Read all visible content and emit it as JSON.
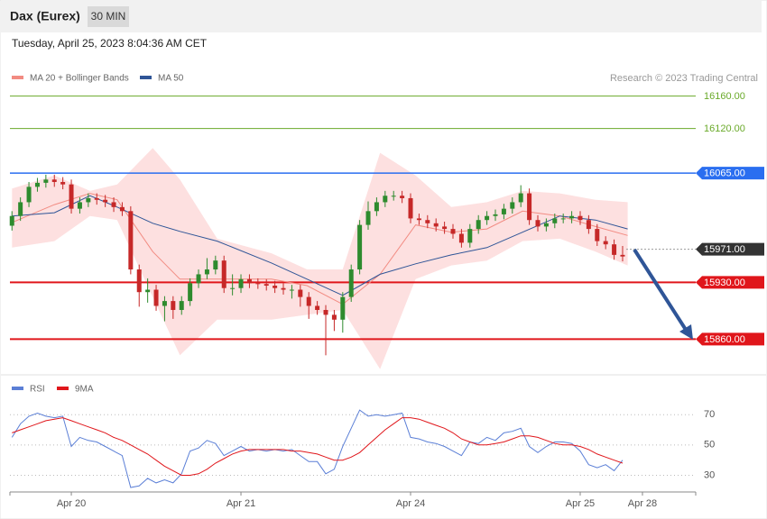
{
  "header": {
    "title": "Dax (Eurex)",
    "timeframe": "30 MIN",
    "timestamp": "Tuesday, April 25, 2023 8:04:36 AM CET"
  },
  "chart_data": [
    {
      "type": "candlestick",
      "source": "Research © 2023 Trading Central",
      "up_color": "#2e8b2e",
      "down_color": "#c62828",
      "xlim": [
        -0.362,
        3.681
      ],
      "ylim": [
        15817,
        16173
      ],
      "x": [
        -0.35,
        -0.3,
        -0.25,
        -0.2,
        -0.15,
        -0.1,
        -0.05,
        0,
        0.05,
        0.1,
        0.15,
        0.2,
        0.25,
        0.3,
        0.35,
        0.4,
        0.45,
        0.5,
        0.55,
        0.6,
        0.65,
        0.7,
        0.75,
        0.8,
        0.85,
        0.9,
        0.95,
        1,
        1.05,
        1.1,
        1.15,
        1.2,
        1.25,
        1.3,
        1.35,
        1.4,
        1.45,
        1.5,
        1.55,
        1.6,
        1.65,
        1.7,
        1.75,
        1.8,
        1.85,
        1.9,
        1.95,
        2,
        2.05,
        2.1,
        2.15,
        2.2,
        2.25,
        2.3,
        2.35,
        2.4,
        2.45,
        2.5,
        2.55,
        2.6,
        2.65,
        2.7,
        2.75,
        2.8,
        2.85,
        2.9,
        2.95,
        3,
        3.05,
        3.1,
        3.15,
        3.2,
        3.25
      ],
      "open": [
        16000,
        16012,
        16029,
        16048,
        16053,
        16057,
        16054,
        16051,
        16021,
        16029,
        16034,
        16032,
        16029,
        16023,
        16018,
        15946,
        15918,
        15921,
        15901,
        15907,
        15896,
        15907,
        15929,
        15940,
        15946,
        15957,
        15923,
        15923,
        15934,
        15929,
        15928,
        15926,
        15923,
        15921,
        15921,
        15912,
        15901,
        15896,
        15890,
        15884,
        15912,
        15946,
        16001,
        16018,
        16029,
        16037,
        16037,
        16034,
        16009,
        16007,
        16003,
        15999,
        15996,
        15990,
        15979,
        15996,
        16007,
        16012,
        16014,
        16021,
        16029,
        16040,
        16007,
        15999,
        16003,
        16009,
        16009,
        16012,
        16007,
        15996,
        15981,
        15977,
        15964
      ],
      "high": [
        16018,
        16035,
        16054,
        16059,
        16063,
        16063,
        16060,
        16057,
        16035,
        16040,
        16040,
        16038,
        16035,
        16029,
        16024,
        15952,
        15935,
        15927,
        15913,
        15913,
        15913,
        15935,
        15946,
        15960,
        15963,
        15963,
        15940,
        15940,
        15940,
        15935,
        15934,
        15932,
        15929,
        15927,
        15927,
        15918,
        15907,
        15902,
        15896,
        15918,
        15952,
        16007,
        16030,
        16035,
        16043,
        16043,
        16043,
        16040,
        16015,
        16013,
        16009,
        16005,
        16002,
        15996,
        16002,
        16013,
        16018,
        16020,
        16027,
        16035,
        16050,
        16046,
        16013,
        16009,
        16015,
        16015,
        16018,
        16018,
        16013,
        16002,
        15987,
        15983,
        15975
      ],
      "low": [
        15994,
        16006,
        16023,
        16042,
        16047,
        16048,
        16045,
        16015,
        16015,
        16023,
        16026,
        16023,
        16017,
        16012,
        15940,
        15900,
        15905,
        15895,
        15882,
        15885,
        15890,
        15901,
        15923,
        15934,
        15940,
        15917,
        15914,
        15917,
        15923,
        15922,
        15920,
        15917,
        15915,
        15910,
        15900,
        15885,
        15890,
        15840,
        15870,
        15868,
        15906,
        15940,
        15995,
        16012,
        16023,
        16031,
        16028,
        16003,
        16001,
        15997,
        15993,
        15990,
        15984,
        15973,
        15973,
        15990,
        16001,
        16006,
        16008,
        16015,
        16023,
        16001,
        15993,
        15993,
        15997,
        16003,
        16003,
        16001,
        15990,
        15975,
        15971,
        15958,
        15956
      ],
      "close": [
        16012,
        16029,
        16048,
        16053,
        16057,
        16054,
        16051,
        16021,
        16029,
        16034,
        16032,
        16029,
        16023,
        16018,
        15946,
        15918,
        15921,
        15901,
        15907,
        15896,
        15907,
        15929,
        15940,
        15946,
        15957,
        15923,
        15923,
        15934,
        15929,
        15928,
        15926,
        15923,
        15921,
        15921,
        15912,
        15901,
        15896,
        15890,
        15884,
        15912,
        15946,
        16001,
        16018,
        16029,
        16037,
        16037,
        16034,
        16009,
        16007,
        16003,
        15999,
        15996,
        15990,
        15979,
        15996,
        16007,
        16012,
        16014,
        16021,
        16029,
        16040,
        16007,
        15999,
        16003,
        16009,
        16009,
        16012,
        16007,
        15996,
        15981,
        15977,
        15964,
        15962
      ],
      "overlays": [
        {
          "name": "MA 20 + Bollinger Bands",
          "color": "#f28b82",
          "band_color": "#fde0e0",
          "x": [
            -0.35,
            -0.1,
            0.11,
            0.27,
            0.48,
            0.64,
            0.86,
            1.18,
            1.39,
            1.6,
            1.82,
            2.03,
            2.24,
            2.45,
            2.66,
            2.88,
            3.09,
            3.28
          ],
          "values": [
            16004,
            16026,
            16040,
            16032,
            15968,
            15934,
            15934,
            15934,
            15926,
            15903,
            15940,
            16001,
            15992,
            15996,
            16018,
            16012,
            15999,
            15988
          ],
          "upper": [
            16046,
            16062,
            16043,
            16051,
            16096,
            16057,
            15984,
            15966,
            15946,
            15946,
            16090,
            16062,
            16023,
            16029,
            16043,
            16040,
            16032,
            16029
          ],
          "lower": [
            15973,
            15981,
            16012,
            16007,
            15912,
            15840,
            15884,
            15884,
            15890,
            15896,
            15823,
            15934,
            15951,
            15957,
            15981,
            15984,
            15968,
            15951
          ]
        },
        {
          "name": "MA 50",
          "color": "#2f5597",
          "x": [
            -0.35,
            -0.1,
            0.11,
            0.27,
            0.48,
            0.64,
            0.86,
            1.18,
            1.39,
            1.6,
            1.82,
            2.03,
            2.24,
            2.45,
            2.66,
            2.88,
            3.09,
            3.28
          ],
          "values": [
            16012,
            16016,
            16037,
            16023,
            16003,
            15993,
            15981,
            15954,
            15934,
            15914,
            15940,
            15953,
            15964,
            15973,
            15992,
            16012,
            16007,
            15996
          ]
        }
      ],
      "levels": [
        {
          "value": 16160,
          "label": "16160.00",
          "color": "#6aaa2a",
          "boxed": false
        },
        {
          "value": 16120,
          "label": "16120.00",
          "color": "#6aaa2a",
          "boxed": false
        },
        {
          "value": 16065,
          "label": "16065.00",
          "color": "#2a6ef0",
          "boxed": true
        },
        {
          "value": 15971,
          "label": "15971.00",
          "color": "#333333",
          "boxed": true,
          "dashed": true
        },
        {
          "value": 15930,
          "label": "15930.00",
          "color": "#e0161b",
          "boxed": true
        },
        {
          "value": 15860,
          "label": "15860.00",
          "color": "#e0161b",
          "boxed": true
        }
      ]
    },
    {
      "type": "line",
      "xlim": [
        -0.362,
        3.681
      ],
      "ylim": [
        19,
        82
      ],
      "yticks": [
        30,
        50,
        70
      ],
      "xticks": [
        {
          "value": 0,
          "label": "Apr 20"
        },
        {
          "value": 1,
          "label": "Apr 21"
        },
        {
          "value": 2,
          "label": "Apr 24"
        },
        {
          "value": 3,
          "label": "Apr 25"
        },
        {
          "value": 3.367,
          "label": "Apr 28"
        }
      ],
      "x": [
        -0.35,
        -0.3,
        -0.25,
        -0.2,
        -0.15,
        -0.1,
        -0.05,
        0,
        0.05,
        0.1,
        0.15,
        0.2,
        0.25,
        0.3,
        0.35,
        0.4,
        0.45,
        0.5,
        0.55,
        0.6,
        0.65,
        0.7,
        0.75,
        0.8,
        0.85,
        0.9,
        0.95,
        1,
        1.05,
        1.1,
        1.15,
        1.2,
        1.25,
        1.3,
        1.35,
        1.4,
        1.45,
        1.5,
        1.55,
        1.6,
        1.65,
        1.7,
        1.75,
        1.8,
        1.85,
        1.9,
        1.95,
        2,
        2.05,
        2.1,
        2.15,
        2.2,
        2.25,
        2.3,
        2.35,
        2.4,
        2.45,
        2.5,
        2.55,
        2.6,
        2.65,
        2.7,
        2.75,
        2.8,
        2.85,
        2.9,
        2.95,
        3,
        3.05,
        3.1,
        3.15,
        3.2,
        3.25
      ],
      "series": [
        {
          "name": "RSI",
          "color": "#5b7fd6",
          "values": [
            55,
            64,
            69,
            71,
            69,
            68,
            69,
            49,
            55,
            53,
            52,
            49,
            46,
            43,
            22,
            23,
            28,
            25,
            27,
            25,
            31,
            46,
            48,
            53,
            51,
            43,
            46,
            49,
            46,
            47,
            46,
            47,
            46,
            47,
            43,
            39,
            39,
            31,
            34,
            49,
            61,
            73,
            69,
            70,
            69,
            70,
            71,
            55,
            54,
            52,
            51,
            49,
            46,
            43,
            52,
            51,
            55,
            53,
            58,
            59,
            61,
            49,
            45,
            49,
            52,
            52,
            51,
            46,
            37,
            35,
            37,
            33,
            40
          ]
        },
        {
          "name": "9MA",
          "color": "#e0161b",
          "values": [
            58,
            60,
            62,
            64,
            66,
            67,
            68,
            66,
            64,
            62,
            60,
            58,
            55,
            53,
            50,
            47,
            44,
            40,
            36,
            33,
            30,
            30,
            31,
            34,
            38,
            41,
            44,
            46,
            47,
            47,
            47,
            47,
            47,
            46,
            46,
            45,
            44,
            42,
            40,
            40,
            42,
            45,
            50,
            55,
            60,
            64,
            68,
            68,
            67,
            65,
            63,
            61,
            58,
            54,
            52,
            50,
            50,
            51,
            52,
            54,
            56,
            56,
            55,
            53,
            51,
            50,
            50,
            49,
            47,
            44,
            42,
            40,
            38
          ]
        }
      ]
    }
  ]
}
